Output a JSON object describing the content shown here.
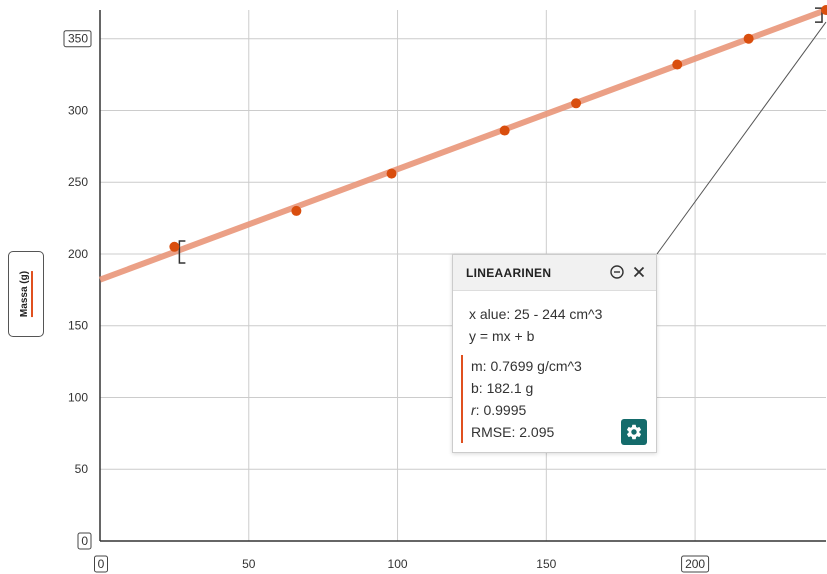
{
  "chart_data": {
    "type": "scatter",
    "xlim": [
      0,
      244
    ],
    "ylim": [
      0,
      370
    ],
    "x_ticks": [
      0,
      50,
      100,
      150,
      200
    ],
    "y_ticks": [
      0,
      50,
      100,
      150,
      200,
      250,
      300,
      350
    ],
    "x_tick_labels": [
      "0",
      "50",
      "100",
      "150",
      "200"
    ],
    "y_tick_labels": [
      "0",
      "50",
      "100",
      "150",
      "200",
      "250",
      "300",
      "350"
    ],
    "ylabel": "Massa (g)",
    "grid": true,
    "points": {
      "x": [
        25,
        66,
        98,
        136,
        160,
        194,
        218,
        244
      ],
      "y": [
        205,
        230,
        256,
        286,
        305,
        332,
        350,
        370
      ]
    },
    "fit": {
      "slope": 0.7699,
      "intercept": 182.1
    },
    "colors": {
      "points": "#d94e0e",
      "fit_line": "#e9967a",
      "grid": "#cccccc",
      "axis": "#333333"
    }
  },
  "panel": {
    "title": "LINEAARINEN",
    "range_text": "x alue: 25 - 244 cm^3",
    "equation": "y = mx + b",
    "m_text": "m: 0.7699 g/cm^3",
    "b_text": "b: 182.1 g",
    "r_label": "r",
    "r_value": ": 0.9995",
    "rmse_text": "RMSE: 2.095",
    "icons": [
      "minus-circle-icon",
      "close-icon",
      "gear-icon"
    ],
    "accent_color": "#146b6b"
  }
}
